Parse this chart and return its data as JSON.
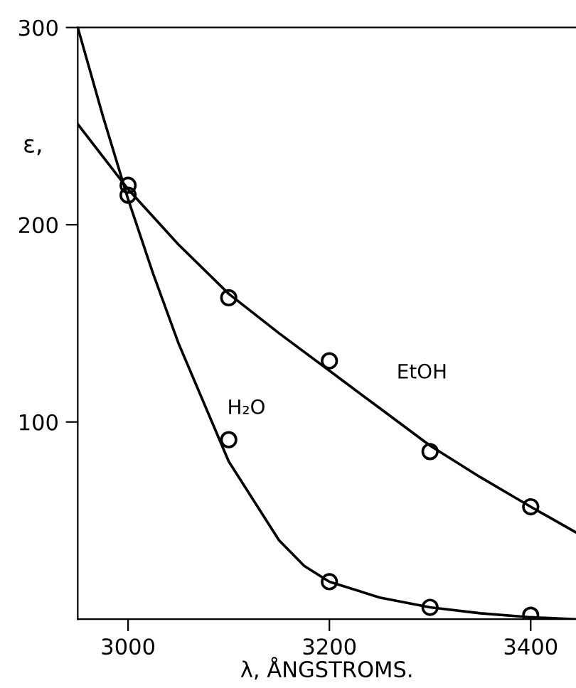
{
  "chart_data": {
    "type": "line",
    "xlabel": "λ, ÅNGSTROMS.",
    "ylabel": "ε,",
    "xlim": [
      2950,
      3445
    ],
    "ylim": [
      0,
      300
    ],
    "xticks": [
      3000,
      3200,
      3400
    ],
    "yticks": [
      {
        "value": 100,
        "label": "100"
      },
      200,
      300
    ],
    "grid": false,
    "legend": false,
    "series": [
      {
        "marker": "none",
        "color": "#000000",
        "x": [
          2950,
          3000,
          3050,
          3100,
          3150,
          3200,
          3250,
          3300,
          3350,
          3400,
          3445
        ],
        "values": [
          251,
          218,
          190,
          165,
          145,
          126,
          107,
          88,
          72,
          57,
          44
        ]
      },
      {
        "marker": "none",
        "color": "#000000",
        "x": [
          2950,
          2975,
          3000,
          3025,
          3050,
          3075,
          3100,
          3125,
          3150,
          3175,
          3200,
          3250,
          3300,
          3350,
          3400,
          3445
        ],
        "values": [
          300,
          255,
          213,
          175,
          140,
          110,
          80,
          60,
          40,
          27,
          19,
          11,
          6,
          3,
          1,
          0
        ]
      },
      {
        "type": "scatter",
        "marker": "circle",
        "color": "#000000",
        "x": [
          3000,
          3100,
          3200,
          3300,
          3400
        ],
        "values": [
          220,
          163,
          131,
          85,
          57
        ]
      },
      {
        "type": "scatter",
        "marker": "circle",
        "color": "#000000",
        "x": [
          3000,
          3100,
          3200,
          3300,
          3400
        ],
        "values": [
          215,
          91,
          19,
          6,
          2
        ]
      }
    ],
    "annotations": [
      "EtOH",
      "H₂O"
    ]
  }
}
